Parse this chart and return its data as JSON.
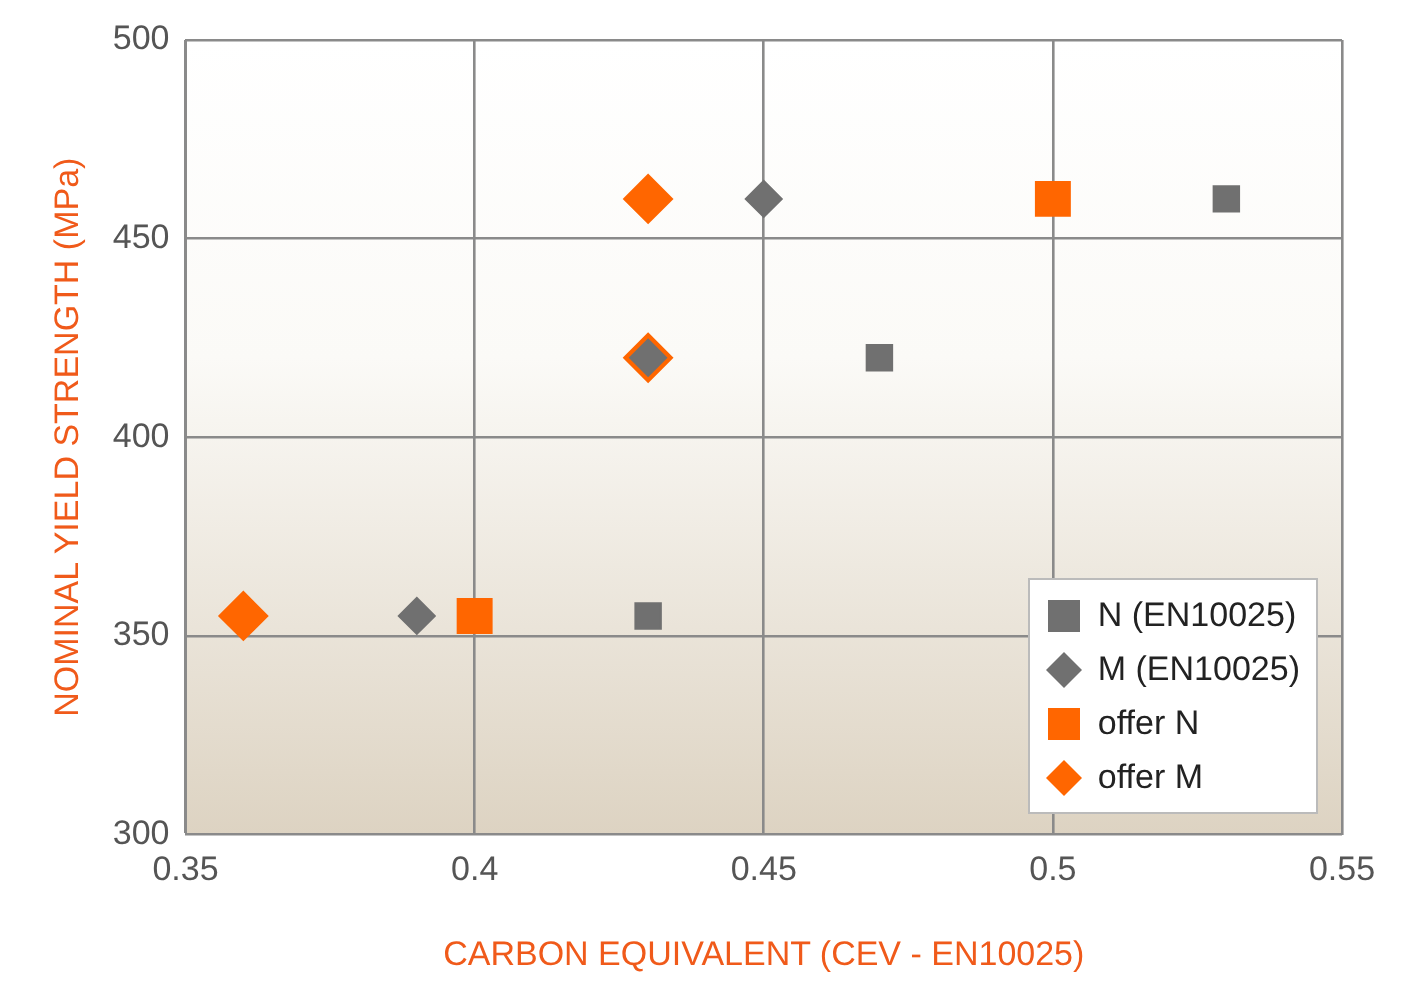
{
  "chart_data": {
    "type": "scatter",
    "xlabel": "CARBON EQUIVALENT (CEV - EN10025)",
    "ylabel": "NOMINAL YIELD STRENGTH (MPa)",
    "xlim": [
      0.35,
      0.55
    ],
    "xticks": [
      0.35,
      0.4,
      0.45,
      0.5,
      0.55
    ],
    "ylim": [
      300,
      500
    ],
    "yticks": [
      300,
      350,
      400,
      450,
      500
    ],
    "grid": true,
    "legend": "bottom right",
    "series": [
      {
        "name": "N (EN10025)",
        "color": "#707070",
        "marker": "square",
        "x": [
          0.43,
          0.47,
          0.53
        ],
        "values": [
          355,
          420,
          460
        ]
      },
      {
        "name": "M (EN10025)",
        "color": "#707070",
        "marker": "diamond",
        "x": [
          0.39,
          0.43,
          0.45
        ],
        "values": [
          355,
          420,
          460
        ]
      },
      {
        "name": "offer N",
        "color": "#ff6600",
        "marker": "square",
        "x": [
          0.4,
          0.5
        ],
        "values": [
          355,
          460
        ]
      },
      {
        "name": "offer M",
        "color": "#ff6600",
        "marker": "diamond",
        "x": [
          0.36,
          0.43,
          0.43
        ],
        "values": [
          355,
          420,
          460
        ]
      }
    ]
  }
}
